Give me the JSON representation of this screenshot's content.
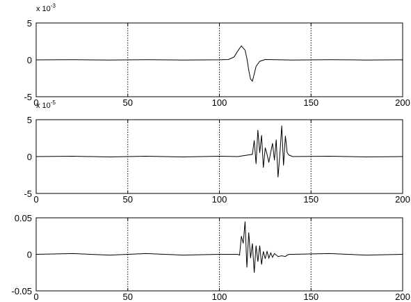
{
  "chart_data": [
    {
      "type": "line",
      "title": "",
      "xlabel": "",
      "ylabel": "",
      "xlim": [
        0,
        200
      ],
      "ylim": [
        -5,
        5
      ],
      "grid": "vertical dotted lines",
      "x_ticks": [
        "0",
        "50",
        "100",
        "150",
        "200"
      ],
      "y_ticks": [
        "5",
        "0",
        "-5"
      ],
      "exponent_label": {
        "base": "x 10",
        "exponent": "-3"
      },
      "series": [
        {
          "color": "#000000",
          "x": [
            0,
            20,
            40,
            60,
            80,
            100,
            105,
            108,
            110,
            112,
            114,
            115,
            116,
            117,
            118,
            119,
            120,
            122,
            125,
            140,
            160,
            180,
            200
          ],
          "y": [
            0,
            0.02,
            -0.03,
            0.02,
            -0.02,
            0.01,
            0.05,
            0.4,
            1.2,
            1.9,
            1.3,
            0.2,
            -1.4,
            -2.6,
            -2.9,
            -1.9,
            -0.9,
            -0.2,
            0.05,
            -0.02,
            0.03,
            -0.02,
            0.01
          ]
        }
      ]
    },
    {
      "type": "line",
      "title": "",
      "xlabel": "",
      "ylabel": "",
      "xlim": [
        0,
        200
      ],
      "ylim": [
        -5,
        5
      ],
      "grid": "vertical dotted lines",
      "x_ticks": [
        "0",
        "50",
        "100",
        "150",
        "200"
      ],
      "y_ticks": [
        "5",
        "0",
        "-5"
      ],
      "exponent_label": {
        "base": "x 10",
        "exponent": "-5"
      },
      "series": [
        {
          "color": "#000000",
          "x": [
            0,
            20,
            40,
            60,
            80,
            100,
            110,
            118,
            119,
            120,
            121,
            122,
            123,
            124,
            125,
            126,
            127,
            128,
            129,
            130,
            131,
            132,
            133,
            134,
            135,
            136,
            137,
            138,
            140,
            160,
            180,
            200
          ],
          "y": [
            0,
            0.05,
            -0.05,
            0.05,
            -0.05,
            0.05,
            0,
            0.3,
            2.2,
            -1.0,
            3.6,
            0.5,
            2.9,
            -1.5,
            1.2,
            0.3,
            -0.8,
            0.6,
            1.8,
            -0.5,
            2.3,
            -2.8,
            0.4,
            4.2,
            -1.2,
            2.8,
            0.5,
            0.2,
            0,
            0.05,
            -0.05,
            0
          ]
        }
      ]
    },
    {
      "type": "line",
      "title": "",
      "xlabel": "",
      "ylabel": "",
      "xlim": [
        0,
        200
      ],
      "ylim": [
        -0.05,
        0.05
      ],
      "grid": "vertical dotted lines",
      "x_ticks": [
        "0",
        "50",
        "100",
        "150",
        "200"
      ],
      "y_ticks": [
        "0.05",
        "0",
        "-0.05"
      ],
      "series": [
        {
          "color": "#000000",
          "x": [
            0,
            20,
            40,
            60,
            80,
            100,
            110,
            111,
            112,
            113,
            114,
            115,
            116,
            117,
            118,
            119,
            120,
            121,
            122,
            123,
            124,
            125,
            126,
            127,
            128,
            129,
            130,
            132,
            134,
            136,
            137,
            138,
            140,
            160,
            180,
            200
          ],
          "y": [
            0,
            0.001,
            -0.001,
            0.001,
            -0.001,
            0,
            0,
            -0.001,
            0.025,
            0.015,
            0.045,
            -0.018,
            0.03,
            -0.005,
            0.015,
            -0.025,
            0.012,
            -0.01,
            0.012,
            -0.014,
            0.004,
            -0.006,
            0.004,
            -0.005,
            0.002,
            -0.004,
            0.001,
            -0.003,
            -0.002,
            -0.003,
            -0.001,
            0,
            0,
            0.001,
            -0.001,
            0
          ]
        }
      ]
    }
  ]
}
